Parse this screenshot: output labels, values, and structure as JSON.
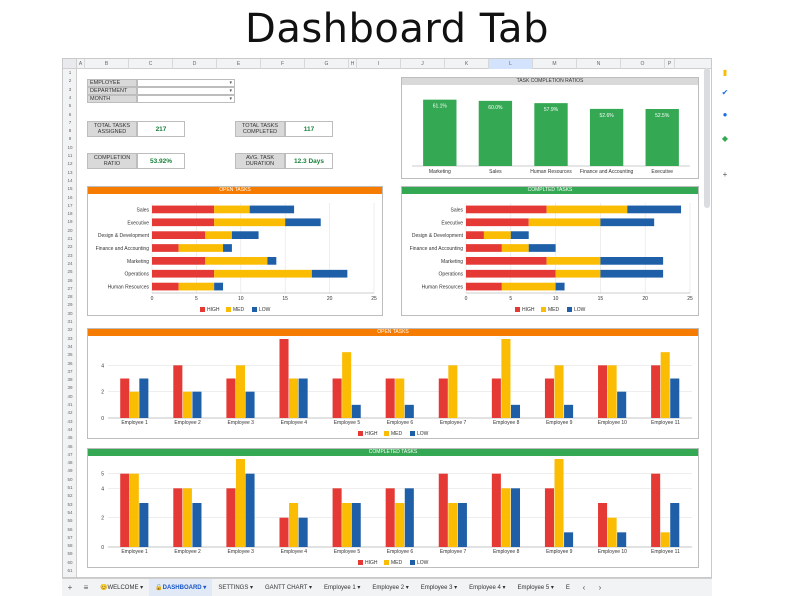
{
  "page_title": "Dashboard Tab",
  "columns": [
    "A",
    "B",
    "C",
    "D",
    "E",
    "F",
    "G",
    "H",
    "I",
    "J",
    "K",
    "L",
    "M",
    "N",
    "O",
    "P"
  ],
  "selected_column": "L",
  "rows_visible": 62,
  "filters": [
    {
      "label": "EMPLOYEE",
      "value": ""
    },
    {
      "label": "DEPARTMENT",
      "value": ""
    },
    {
      "label": "MONTH",
      "value": ""
    }
  ],
  "kpis": [
    {
      "label": "TOTAL TASKS ASSIGNED",
      "value": "217"
    },
    {
      "label": "TOTAL TASKS COMPLETED",
      "value": "117"
    },
    {
      "label": "COMPLETION RATIO",
      "value": "53.92%"
    },
    {
      "label": "AVG. TASK DURATION",
      "value": "12.3 Days"
    }
  ],
  "legend": {
    "high": "HIGH",
    "med": "MED",
    "low": "LOW"
  },
  "colors": {
    "high": "#e53935",
    "med": "#fbbc04",
    "low": "#1f5fa8",
    "green": "#34a853",
    "orange": "#f57c00"
  },
  "chart_data": [
    {
      "type": "bar",
      "title": "TASK COMPLETION RATIOS",
      "categories": [
        "Marketing",
        "Sales",
        "Human Resources",
        "Finance and Accounting",
        "Executive"
      ],
      "values": [
        61.1,
        60.0,
        57.9,
        52.6,
        52.5
      ],
      "data_labels": [
        "61.1%",
        "60.0%",
        "57.9%",
        "52.6%",
        "52.5%"
      ],
      "ylim": [
        0,
        70
      ]
    },
    {
      "type": "bar",
      "orientation": "horizontal-stacked",
      "title": "OPEN TASKS",
      "categories": [
        "Sales",
        "Executive",
        "Design & Development",
        "Finance and Accounting",
        "Marketing",
        "Operations",
        "Human Resources"
      ],
      "series": [
        {
          "name": "HIGH",
          "values": [
            7,
            7,
            6,
            3,
            6,
            7,
            3
          ]
        },
        {
          "name": "MED",
          "values": [
            4,
            8,
            3,
            5,
            7,
            11,
            4
          ]
        },
        {
          "name": "LOW",
          "values": [
            5,
            4,
            3,
            1,
            1,
            4,
            1
          ]
        }
      ],
      "xlim": [
        0,
        25
      ],
      "xticks": [
        0,
        5,
        10,
        15,
        20,
        25
      ]
    },
    {
      "type": "bar",
      "orientation": "horizontal-stacked",
      "title": "COMPLTED TASKS",
      "categories": [
        "Sales",
        "Executive",
        "Design & Development",
        "Finance and Accounting",
        "Marketing",
        "Operations",
        "Human Resources"
      ],
      "series": [
        {
          "name": "HIGH",
          "values": [
            9,
            7,
            2,
            4,
            9,
            10,
            4
          ]
        },
        {
          "name": "MED",
          "values": [
            9,
            8,
            3,
            3,
            6,
            5,
            6
          ]
        },
        {
          "name": "LOW",
          "values": [
            6,
            6,
            2,
            3,
            7,
            7,
            1
          ]
        }
      ],
      "xlim": [
        0,
        25
      ],
      "xticks": [
        0,
        5,
        10,
        15,
        20,
        25
      ]
    },
    {
      "type": "bar",
      "title": "OPEN TASKS",
      "categories": [
        "Employee 1",
        "Employee 2",
        "Employee 3",
        "Employee 4",
        "Employee 5",
        "Employee 6",
        "Employee 7",
        "Employee 8",
        "Employee 9",
        "Employee 10",
        "Employee 11"
      ],
      "series": [
        {
          "name": "HIGH",
          "values": [
            3,
            4,
            3,
            6,
            3,
            3,
            3,
            3,
            3,
            4,
            4
          ]
        },
        {
          "name": "MED",
          "values": [
            2,
            2,
            4,
            3,
            5,
            3,
            4,
            6,
            4,
            4,
            5
          ]
        },
        {
          "name": "LOW",
          "values": [
            3,
            2,
            2,
            3,
            1,
            1,
            0,
            1,
            1,
            2,
            3
          ]
        }
      ],
      "ylim": [
        0,
        6
      ],
      "yticks": [
        0,
        2,
        4
      ]
    },
    {
      "type": "bar",
      "title": "COMPLETED TASKS",
      "categories": [
        "Employee 1",
        "Employee 2",
        "Employee 3",
        "Employee 4",
        "Employee 5",
        "Employee 6",
        "Employee 7",
        "Employee 8",
        "Employee 9",
        "Employee 10",
        "Employee 11"
      ],
      "series": [
        {
          "name": "HIGH",
          "values": [
            5,
            4,
            4,
            2,
            4,
            4,
            5,
            5,
            4,
            3,
            5
          ]
        },
        {
          "name": "MED",
          "values": [
            5,
            4,
            6,
            3,
            3,
            3,
            3,
            4,
            6,
            2,
            1
          ]
        },
        {
          "name": "LOW",
          "values": [
            3,
            3,
            5,
            2,
            3,
            4,
            3,
            4,
            1,
            1,
            3
          ]
        }
      ],
      "ylim": [
        0,
        6
      ],
      "yticks": [
        0,
        2,
        4,
        5
      ]
    }
  ],
  "tabs": [
    {
      "label": "+",
      "icon": true
    },
    {
      "label": "≡",
      "icon": true
    },
    {
      "label": "😊WELCOME ▾"
    },
    {
      "label": "🔒DASHBOARD ▾",
      "active": true
    },
    {
      "label": "SETTINGS ▾"
    },
    {
      "label": "GANTT CHART ▾"
    },
    {
      "label": "Employee 1 ▾"
    },
    {
      "label": "Employee 2 ▾"
    },
    {
      "label": "Employee 3 ▾"
    },
    {
      "label": "Employee 4 ▾"
    },
    {
      "label": "Employee 5 ▾"
    },
    {
      "label": "E"
    },
    {
      "label": "‹",
      "icon": true
    },
    {
      "label": "›",
      "icon": true
    }
  ],
  "side_icons": [
    "keep-icon",
    "tasks-icon",
    "contacts-icon",
    "maps-icon",
    "add-icon"
  ]
}
